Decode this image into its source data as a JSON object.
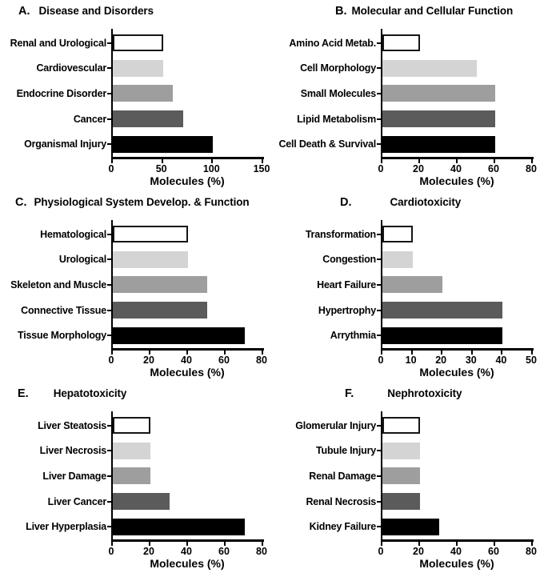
{
  "figure": {
    "shared_xlabel": "Molecules (%)"
  },
  "colors": {
    "background": "#ffffff",
    "axis": "#000000",
    "text": "#000000",
    "bar_shades": [
      "#ffffff",
      "#d4d4d4",
      "#9e9e9e",
      "#5b5b5b",
      "#000000"
    ],
    "white_bar_border": "#161616"
  },
  "chart_data": [
    {
      "type": "bar",
      "orientation": "horizontal",
      "panel_letter": "A.",
      "title": "Disease and Disorders",
      "categories": [
        "Renal and Urological",
        "Cardiovescular",
        "Endocrine Disorder",
        "Cancer",
        "Organismal Injury"
      ],
      "values": [
        50,
        50,
        60,
        70,
        100
      ],
      "xlabel": "Molecules (%)",
      "xlim": [
        0,
        150
      ],
      "xticks": [
        0,
        50,
        100,
        150
      ],
      "grid": false,
      "legend": "none"
    },
    {
      "type": "bar",
      "orientation": "horizontal",
      "panel_letter": "B.",
      "title": "Molecular and Cellular Function",
      "categories": [
        "Amino Acid Metab.",
        "Cell Morphology",
        "Small Molecules",
        "Lipid Metabolism",
        "Cell Death & Survival"
      ],
      "values": [
        20,
        50,
        60,
        60,
        60
      ],
      "xlabel": "Molecules (%)",
      "xlim": [
        0,
        80
      ],
      "xticks": [
        0,
        20,
        40,
        60,
        80
      ],
      "grid": false,
      "legend": "none"
    },
    {
      "type": "bar",
      "orientation": "horizontal",
      "panel_letter": "C.",
      "title": "Physiological System Develop. & Function",
      "categories": [
        "Hematological",
        "Urological",
        "Skeleton and Muscle",
        "Connective Tissue",
        "Tissue Morphology"
      ],
      "values": [
        40,
        40,
        50,
        50,
        70
      ],
      "xlabel": "Molecules (%)",
      "xlim": [
        0,
        80
      ],
      "xticks": [
        0,
        20,
        40,
        60,
        80
      ],
      "grid": false,
      "legend": "none"
    },
    {
      "type": "bar",
      "orientation": "horizontal",
      "panel_letter": "D.",
      "title": "Cardiotoxicity",
      "categories": [
        "Transformation",
        "Congestion",
        "Heart Failure",
        "Hypertrophy",
        "Arrythmia"
      ],
      "values": [
        10,
        10,
        20,
        40,
        40
      ],
      "xlabel": "Molecules (%)",
      "xlim": [
        0,
        50
      ],
      "xticks": [
        0,
        10,
        20,
        30,
        40,
        50
      ],
      "grid": false,
      "legend": "none"
    },
    {
      "type": "bar",
      "orientation": "horizontal",
      "panel_letter": "E.",
      "title": "Hepatotoxicity",
      "categories": [
        "Liver Steatosis",
        "Liver Necrosis",
        "Liver Damage",
        "Liver Cancer",
        "Liver Hyperplasia"
      ],
      "values": [
        20,
        20,
        20,
        30,
        70
      ],
      "xlabel": "Molecules (%)",
      "xlim": [
        0,
        80
      ],
      "xticks": [
        0,
        20,
        40,
        60,
        80
      ],
      "grid": false,
      "legend": "none"
    },
    {
      "type": "bar",
      "orientation": "horizontal",
      "panel_letter": "F.",
      "title": "Nephrotoxicity",
      "categories": [
        "Glomerular Injury",
        "Tubule Injury",
        "Renal Damage",
        "Renal Necrosis",
        "Kidney Failure"
      ],
      "values": [
        20,
        20,
        20,
        20,
        30
      ],
      "xlabel": "Molecules (%)",
      "xlim": [
        0,
        80
      ],
      "xticks": [
        0,
        20,
        40,
        60,
        80
      ],
      "grid": false,
      "legend": "none"
    }
  ]
}
